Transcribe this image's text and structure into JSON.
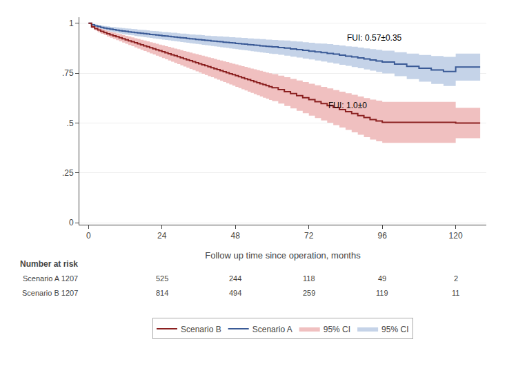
{
  "chart_data": {
    "type": "step",
    "xlabel": "Follow up time since operation, months",
    "xlim": [
      -3,
      130
    ],
    "ylim": [
      -0.01,
      1.03
    ],
    "xticks": [
      0,
      24,
      48,
      72,
      96,
      120
    ],
    "yticks": [
      0,
      {
        "value": 0.25,
        "label": ".25"
      },
      {
        "value": 0.5,
        "label": ".5"
      },
      {
        "value": 0.75,
        "label": ".75"
      },
      1
    ],
    "grid": "y",
    "legend": "bottom",
    "series": [
      {
        "name": "Scenario A",
        "color": "#3a5a96",
        "ci_name": "95% CI",
        "ci_color": "#c5d3e8",
        "x": [
          0,
          1,
          2,
          3,
          4,
          5,
          6,
          7,
          8,
          9,
          10,
          11,
          12,
          13,
          14,
          15,
          16,
          17,
          18,
          19,
          20,
          21,
          22,
          23,
          24,
          25,
          26,
          27,
          28,
          29,
          30,
          31,
          32,
          33,
          34,
          35,
          36,
          37,
          38,
          39,
          40,
          41,
          42,
          43,
          44,
          45,
          46,
          47,
          48,
          49,
          50,
          51,
          52,
          53,
          54,
          55,
          56,
          57,
          58,
          59,
          60,
          62,
          64,
          66,
          68,
          70,
          72,
          74,
          76,
          78,
          80,
          82,
          84,
          86,
          88,
          90,
          92,
          94,
          96,
          100,
          104,
          108,
          112,
          116,
          120,
          128
        ],
        "values": [
          1.0,
          0.992,
          0.987,
          0.983,
          0.979,
          0.976,
          0.973,
          0.97,
          0.968,
          0.965,
          0.963,
          0.961,
          0.959,
          0.957,
          0.955,
          0.953,
          0.951,
          0.95,
          0.948,
          0.946,
          0.944,
          0.943,
          0.941,
          0.939,
          0.937,
          0.936,
          0.934,
          0.932,
          0.931,
          0.929,
          0.927,
          0.926,
          0.924,
          0.922,
          0.921,
          0.919,
          0.918,
          0.916,
          0.914,
          0.913,
          0.911,
          0.91,
          0.908,
          0.907,
          0.905,
          0.904,
          0.902,
          0.901,
          0.899,
          0.898,
          0.896,
          0.895,
          0.893,
          0.892,
          0.89,
          0.889,
          0.887,
          0.886,
          0.884,
          0.883,
          0.881,
          0.878,
          0.875,
          0.871,
          0.868,
          0.864,
          0.86,
          0.856,
          0.853,
          0.849,
          0.845,
          0.84,
          0.835,
          0.831,
          0.826,
          0.821,
          0.816,
          0.811,
          0.805,
          0.795,
          0.784,
          0.774,
          0.766,
          0.758,
          0.78,
          0.78
        ],
        "lo": [
          1.0,
          0.987,
          0.98,
          0.975,
          0.97,
          0.966,
          0.962,
          0.958,
          0.955,
          0.952,
          0.949,
          0.946,
          0.944,
          0.941,
          0.939,
          0.936,
          0.934,
          0.932,
          0.93,
          0.928,
          0.926,
          0.924,
          0.922,
          0.92,
          0.918,
          0.916,
          0.914,
          0.912,
          0.91,
          0.908,
          0.906,
          0.904,
          0.902,
          0.9,
          0.898,
          0.896,
          0.894,
          0.892,
          0.89,
          0.888,
          0.886,
          0.884,
          0.882,
          0.88,
          0.878,
          0.876,
          0.874,
          0.872,
          0.87,
          0.868,
          0.866,
          0.864,
          0.862,
          0.86,
          0.858,
          0.856,
          0.854,
          0.852,
          0.85,
          0.848,
          0.846,
          0.842,
          0.837,
          0.832,
          0.828,
          0.823,
          0.818,
          0.813,
          0.808,
          0.803,
          0.798,
          0.792,
          0.786,
          0.78,
          0.774,
          0.768,
          0.762,
          0.755,
          0.748,
          0.735,
          0.72,
          0.707,
          0.696,
          0.685,
          0.712,
          0.712
        ],
        "hi": [
          1.0,
          0.997,
          0.994,
          0.991,
          0.988,
          0.986,
          0.984,
          0.982,
          0.981,
          0.979,
          0.977,
          0.976,
          0.974,
          0.973,
          0.971,
          0.97,
          0.968,
          0.967,
          0.966,
          0.964,
          0.962,
          0.961,
          0.96,
          0.958,
          0.956,
          0.956,
          0.954,
          0.952,
          0.952,
          0.95,
          0.948,
          0.948,
          0.946,
          0.944,
          0.944,
          0.942,
          0.942,
          0.94,
          0.938,
          0.938,
          0.936,
          0.936,
          0.934,
          0.934,
          0.932,
          0.932,
          0.93,
          0.93,
          0.928,
          0.928,
          0.926,
          0.926,
          0.924,
          0.924,
          0.922,
          0.922,
          0.92,
          0.92,
          0.918,
          0.918,
          0.916,
          0.914,
          0.913,
          0.91,
          0.908,
          0.905,
          0.902,
          0.899,
          0.898,
          0.895,
          0.892,
          0.888,
          0.884,
          0.882,
          0.878,
          0.874,
          0.87,
          0.867,
          0.862,
          0.855,
          0.848,
          0.841,
          0.836,
          0.831,
          0.848,
          0.848
        ]
      },
      {
        "name": "Scenario B",
        "color": "#8b2020",
        "ci_name": "95% CI",
        "ci_color": "#f0c0c0",
        "x": [
          0,
          1,
          2,
          3,
          4,
          5,
          6,
          7,
          8,
          9,
          10,
          11,
          12,
          13,
          14,
          15,
          16,
          17,
          18,
          19,
          20,
          21,
          22,
          23,
          24,
          25,
          26,
          27,
          28,
          29,
          30,
          31,
          32,
          33,
          34,
          35,
          36,
          37,
          38,
          39,
          40,
          41,
          42,
          43,
          44,
          45,
          46,
          47,
          48,
          49,
          50,
          51,
          52,
          53,
          54,
          55,
          56,
          57,
          58,
          59,
          60,
          62,
          64,
          66,
          68,
          70,
          72,
          74,
          76,
          78,
          80,
          82,
          84,
          86,
          88,
          90,
          92,
          94,
          96,
          100,
          104,
          108,
          112,
          116,
          120,
          128
        ],
        "values": [
          1.0,
          0.982,
          0.973,
          0.966,
          0.959,
          0.953,
          0.947,
          0.942,
          0.937,
          0.932,
          0.927,
          0.922,
          0.917,
          0.912,
          0.907,
          0.902,
          0.897,
          0.892,
          0.887,
          0.882,
          0.877,
          0.872,
          0.867,
          0.862,
          0.857,
          0.852,
          0.847,
          0.842,
          0.837,
          0.832,
          0.827,
          0.822,
          0.817,
          0.812,
          0.807,
          0.802,
          0.797,
          0.792,
          0.787,
          0.782,
          0.777,
          0.772,
          0.767,
          0.762,
          0.757,
          0.752,
          0.747,
          0.742,
          0.737,
          0.732,
          0.727,
          0.722,
          0.717,
          0.712,
          0.707,
          0.702,
          0.697,
          0.692,
          0.687,
          0.682,
          0.677,
          0.667,
          0.657,
          0.647,
          0.637,
          0.627,
          0.617,
          0.607,
          0.597,
          0.587,
          0.577,
          0.567,
          0.557,
          0.547,
          0.537,
          0.527,
          0.517,
          0.51,
          0.503,
          0.503,
          0.503,
          0.503,
          0.503,
          0.503,
          0.5,
          0.5
        ],
        "lo": [
          1.0,
          0.975,
          0.964,
          0.955,
          0.947,
          0.94,
          0.933,
          0.927,
          0.921,
          0.915,
          0.909,
          0.903,
          0.897,
          0.891,
          0.885,
          0.879,
          0.873,
          0.867,
          0.861,
          0.855,
          0.849,
          0.843,
          0.837,
          0.831,
          0.825,
          0.819,
          0.813,
          0.807,
          0.801,
          0.795,
          0.789,
          0.783,
          0.777,
          0.771,
          0.765,
          0.759,
          0.753,
          0.747,
          0.741,
          0.735,
          0.729,
          0.723,
          0.717,
          0.711,
          0.705,
          0.699,
          0.693,
          0.687,
          0.681,
          0.675,
          0.669,
          0.663,
          0.657,
          0.651,
          0.645,
          0.639,
          0.633,
          0.627,
          0.621,
          0.615,
          0.609,
          0.597,
          0.585,
          0.573,
          0.561,
          0.549,
          0.537,
          0.525,
          0.513,
          0.501,
          0.489,
          0.477,
          0.465,
          0.453,
          0.441,
          0.429,
          0.417,
          0.408,
          0.4,
          0.4,
          0.4,
          0.4,
          0.4,
          0.4,
          0.424,
          0.424
        ],
        "hi": [
          1.0,
          0.989,
          0.982,
          0.977,
          0.971,
          0.966,
          0.961,
          0.957,
          0.953,
          0.949,
          0.945,
          0.941,
          0.937,
          0.933,
          0.929,
          0.925,
          0.921,
          0.917,
          0.913,
          0.909,
          0.905,
          0.901,
          0.897,
          0.893,
          0.889,
          0.885,
          0.881,
          0.877,
          0.873,
          0.869,
          0.865,
          0.861,
          0.857,
          0.853,
          0.849,
          0.845,
          0.841,
          0.837,
          0.833,
          0.829,
          0.825,
          0.821,
          0.817,
          0.813,
          0.809,
          0.805,
          0.801,
          0.797,
          0.793,
          0.789,
          0.785,
          0.781,
          0.777,
          0.773,
          0.769,
          0.765,
          0.761,
          0.757,
          0.753,
          0.749,
          0.745,
          0.737,
          0.729,
          0.721,
          0.713,
          0.705,
          0.697,
          0.689,
          0.681,
          0.673,
          0.665,
          0.657,
          0.649,
          0.641,
          0.633,
          0.625,
          0.617,
          0.612,
          0.606,
          0.606,
          0.606,
          0.606,
          0.606,
          0.606,
          0.576,
          0.576
        ]
      }
    ],
    "annotations": [
      {
        "text": "FUI: 0.57±0.35",
        "x": 84,
        "y": 0.895
      },
      {
        "text": "FUI: 1.0±0",
        "x": 78,
        "y": 0.555
      }
    ],
    "risk_table": {
      "label": "Number at risk",
      "times": [
        24,
        48,
        72,
        96,
        120
      ],
      "rows": [
        {
          "label": "Scenario A 1207",
          "values": [
            525,
            244,
            118,
            49,
            2
          ]
        },
        {
          "label": "Scenario B 1207",
          "values": [
            814,
            494,
            259,
            119,
            11
          ]
        }
      ]
    }
  }
}
